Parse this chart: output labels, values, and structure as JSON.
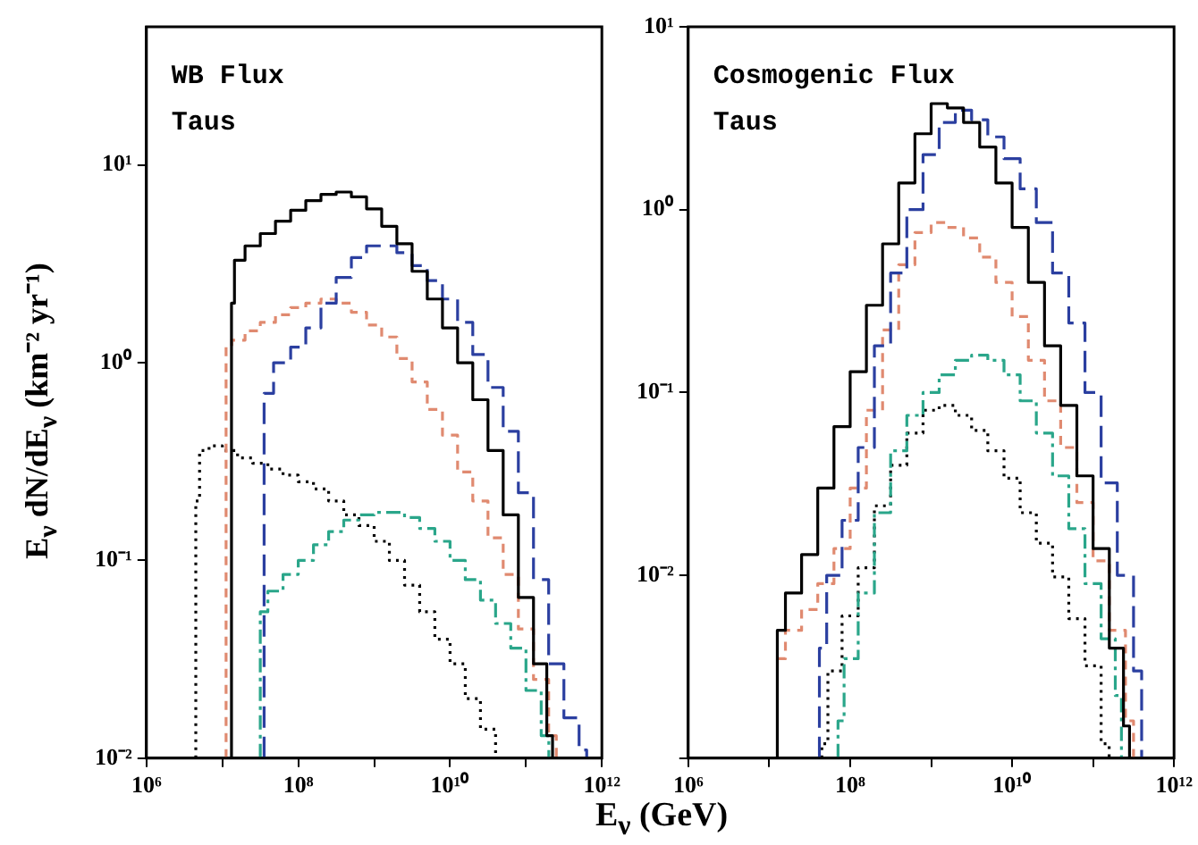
{
  "chart_data": [
    {
      "type": "step",
      "ylabel": "E$_{ν}$ dN/dE$_{ν}$ (km⁻² yr⁻¹)",
      "annotations": [
        "WB Flux",
        "Taus"
      ],
      "log": "xy",
      "legend": false,
      "xlim": [
        1000000.0,
        1000000000000.0
      ],
      "xticks": [
        {
          "value": 1000000.0,
          "label": "10⁶"
        },
        {
          "value": 10000000.0,
          "label": null
        },
        {
          "value": 100000000.0,
          "label": "10⁸"
        },
        {
          "value": 1000000000.0,
          "label": null
        },
        {
          "value": 10000000000.0,
          "label": "10¹⁰"
        },
        {
          "value": 100000000000.0,
          "label": null
        },
        {
          "value": 1000000000000.0,
          "label": "10¹²"
        }
      ],
      "ylim": [
        0.01,
        50
      ],
      "yticks": [
        {
          "value": 0.01,
          "label": "10⁻²"
        },
        {
          "value": 0.1,
          "label": "10⁻¹"
        },
        {
          "value": 1,
          "label": "10⁰"
        },
        {
          "value": 10,
          "label": "10¹"
        }
      ],
      "series": [
        {
          "color": "#000000",
          "line_style": "solid",
          "x": [
            13200000.0,
            13200000.0,
            15800000.0,
            25100000.0,
            39800000.0,
            63100000.0,
            100000000.0,
            158000000.0,
            251000000.0,
            398000000.0,
            631000000.0,
            1000000000.0,
            1580000000.0,
            2510000000.0,
            3980000000.0,
            6310000000.0,
            10000000000.0,
            15800000000.0,
            25100000000.0,
            39800000000.0,
            63100000000.0,
            100000000000.0,
            158000000000.0,
            224000000000.0,
            224000000000.0
          ],
          "values": [
            0.01,
            2.0,
            3.3,
            3.9,
            4.5,
            5.2,
            5.9,
            6.6,
            7.1,
            7.3,
            6.9,
            6.0,
            4.9,
            4.0,
            2.9,
            2.1,
            1.5,
            1.0,
            0.65,
            0.36,
            0.17,
            0.065,
            0.03,
            0.013,
            0.01
          ]
        },
        {
          "color": "#2b3fa0",
          "line_style": "longdashed",
          "x": [
            35500000.0,
            35500000.0,
            63100000.0,
            100000000.0,
            158000000.0,
            251000000.0,
            398000000.0,
            631000000.0,
            1000000000.0,
            1580000000.0,
            2510000000.0,
            3980000000.0,
            6310000000.0,
            10000000000.0,
            15800000000.0,
            25100000000.0,
            39800000000.0,
            63100000000.0,
            100000000000.0,
            158000000000.0,
            251000000000.0,
            398000000000.0,
            631000000000.0,
            631000000000.0
          ],
          "values": [
            0.01,
            0.7,
            1.0,
            1.2,
            1.5,
            2.0,
            2.7,
            3.4,
            3.9,
            3.9,
            3.6,
            3.1,
            2.6,
            2.1,
            1.6,
            1.1,
            0.75,
            0.45,
            0.22,
            0.08,
            0.03,
            0.016,
            0.011,
            0.01
          ]
        },
        {
          "color": "#e08a70",
          "line_style": "dashed",
          "x": [
            11200000.0,
            11200000.0,
            15800000.0,
            25100000.0,
            39800000.0,
            63100000.0,
            100000000.0,
            158000000.0,
            251000000.0,
            398000000.0,
            631000000.0,
            1000000000.0,
            1580000000.0,
            2510000000.0,
            3980000000.0,
            6310000000.0,
            10000000000.0,
            15800000000.0,
            25100000000.0,
            39800000000.0,
            63100000000.0,
            100000000000.0,
            158000000000.0,
            251000000000.0,
            251000000000.0
          ],
          "values": [
            0.01,
            1.2,
            1.3,
            1.45,
            1.6,
            1.75,
            1.9,
            2.0,
            2.1,
            2.0,
            1.8,
            1.55,
            1.35,
            1.05,
            0.8,
            0.58,
            0.43,
            0.28,
            0.2,
            0.13,
            0.085,
            0.045,
            0.025,
            0.013,
            0.01
          ]
        },
        {
          "color": "#2aa68a",
          "line_style": "dashdot",
          "x": [
            31600000.0,
            31600000.0,
            50100000.0,
            79400000.0,
            126000000.0,
            200000000.0,
            316000000.0,
            501000000.0,
            794000000.0,
            1260000000.0,
            2000000000.0,
            3160000000.0,
            5010000000.0,
            7940000000.0,
            12600000000.0,
            20000000000.0,
            31600000000.0,
            50100000000.0,
            79400000000.0,
            126000000000.0,
            200000000000.0,
            200000000000.0
          ],
          "values": [
            0.01,
            0.055,
            0.07,
            0.085,
            0.1,
            0.12,
            0.14,
            0.16,
            0.17,
            0.175,
            0.175,
            0.165,
            0.145,
            0.125,
            0.1,
            0.08,
            0.063,
            0.048,
            0.036,
            0.022,
            0.013,
            0.01
          ]
        },
        {
          "color": "#000000",
          "line_style": "dotted",
          "x": [
            4470000.0,
            4470000.0,
            5620000.0,
            7940000.0,
            12600000.0,
            20000000.0,
            31600000.0,
            50100000.0,
            79400000.0,
            126000000.0,
            200000000.0,
            316000000.0,
            501000000.0,
            794000000.0,
            1260000000.0,
            2000000000.0,
            3160000000.0,
            5010000000.0,
            7940000000.0,
            12600000000.0,
            20000000000.0,
            31600000000.0,
            50100000000.0
          ],
          "values": [
            0.01,
            0.2,
            0.36,
            0.38,
            0.36,
            0.33,
            0.31,
            0.29,
            0.27,
            0.25,
            0.23,
            0.2,
            0.17,
            0.15,
            0.125,
            0.1,
            0.075,
            0.055,
            0.04,
            0.03,
            0.02,
            0.014,
            0.01
          ]
        }
      ]
    },
    {
      "type": "step",
      "xlabel": "E$_{ν}$ (GeV)",
      "annotations": [
        "Cosmogenic Flux",
        "Taus"
      ],
      "log": "xy",
      "legend": false,
      "xlim": [
        1000000.0,
        1000000000000.0
      ],
      "xticks": [
        {
          "value": 1000000.0,
          "label": "10⁶"
        },
        {
          "value": 10000000.0,
          "label": null
        },
        {
          "value": 100000000.0,
          "label": "10⁸"
        },
        {
          "value": 1000000000.0,
          "label": null
        },
        {
          "value": 10000000000.0,
          "label": "10¹⁰"
        },
        {
          "value": 100000000000.0,
          "label": null
        },
        {
          "value": 1000000000000.0,
          "label": "10¹²"
        }
      ],
      "ylim": [
        0.001,
        10
      ],
      "yticks": [
        {
          "value": 0.001,
          "label": null
        },
        {
          "value": 0.01,
          "label": "10⁻²"
        },
        {
          "value": 0.1,
          "label": "10⁻¹"
        },
        {
          "value": 1,
          "label": "10⁰"
        },
        {
          "value": 10,
          "label": "10¹"
        }
      ],
      "series": [
        {
          "color": "#000000",
          "line_style": "solid",
          "x": [
            12600000.0,
            12600000.0,
            20000000.0,
            31600000.0,
            50100000.0,
            79400000.0,
            126000000.0,
            200000000.0,
            316000000.0,
            501000000.0,
            794000000.0,
            1260000000.0,
            2000000000.0,
            3160000000.0,
            5010000000.0,
            7940000000.0,
            12600000000.0,
            20000000000.0,
            31600000000.0,
            50100000000.0,
            79400000000.0,
            126000000000.0,
            200000000000.0,
            282000000000.0,
            282000000000.0
          ],
          "values": [
            0.001,
            0.005,
            0.008,
            0.013,
            0.03,
            0.065,
            0.13,
            0.3,
            0.65,
            1.4,
            2.6,
            3.8,
            3.6,
            3.0,
            2.2,
            1.4,
            0.8,
            0.4,
            0.18,
            0.085,
            0.035,
            0.014,
            0.004,
            0.0015,
            0.001
          ]
        },
        {
          "color": "#2b3fa0",
          "line_style": "longdashed",
          "x": [
            41700000.0,
            41700000.0,
            63100000.0,
            100000000.0,
            158000000.0,
            251000000.0,
            398000000.0,
            631000000.0,
            1000000000.0,
            1580000000.0,
            2510000000.0,
            3980000000.0,
            6310000000.0,
            10000000000.0,
            15800000000.0,
            25100000000.0,
            39800000000.0,
            63100000000.0,
            100000000000.0,
            158000000000.0,
            251000000000.0,
            398000000000.0,
            398000000000.0
          ],
          "values": [
            0.001,
            0.004,
            0.01,
            0.02,
            0.05,
            0.18,
            0.45,
            1.0,
            2.0,
            3.0,
            3.5,
            3.1,
            2.5,
            1.9,
            1.3,
            0.85,
            0.45,
            0.24,
            0.1,
            0.032,
            0.01,
            0.003,
            0.001
          ]
        },
        {
          "color": "#e08a70",
          "line_style": "dashed",
          "x": [
            12600000.0,
            20000000.0,
            31600000.0,
            50100000.0,
            79400000.0,
            126000000.0,
            200000000.0,
            316000000.0,
            501000000.0,
            794000000.0,
            1260000000.0,
            2000000000.0,
            3160000000.0,
            5010000000.0,
            7940000000.0,
            12600000000.0,
            20000000000.0,
            31600000000.0,
            50100000000.0,
            79400000000.0,
            126000000000.0,
            200000000000.0,
            316000000000.0,
            316000000000.0
          ],
          "values": [
            0.0035,
            0.005,
            0.0065,
            0.009,
            0.014,
            0.03,
            0.08,
            0.22,
            0.5,
            0.75,
            0.85,
            0.8,
            0.7,
            0.55,
            0.4,
            0.26,
            0.15,
            0.09,
            0.05,
            0.025,
            0.012,
            0.005,
            0.0016,
            0.001
          ]
        },
        {
          "color": "#2aa68a",
          "line_style": "dashdot",
          "x": [
            70800000.0,
            70800000.0,
            100000000.0,
            158000000.0,
            251000000.0,
            398000000.0,
            631000000.0,
            1000000000.0,
            1580000000.0,
            2510000000.0,
            3980000000.0,
            6310000000.0,
            10000000000.0,
            15800000000.0,
            25100000000.0,
            39800000000.0,
            63100000000.0,
            100000000000.0,
            158000000000.0,
            224000000000.0,
            224000000000.0
          ],
          "values": [
            0.001,
            0.0016,
            0.0035,
            0.008,
            0.022,
            0.048,
            0.075,
            0.1,
            0.125,
            0.15,
            0.16,
            0.15,
            0.125,
            0.09,
            0.06,
            0.035,
            0.018,
            0.009,
            0.0045,
            0.0022,
            0.001
          ]
        },
        {
          "color": "#000000",
          "line_style": "dotted",
          "x": [
            44700000.0,
            44700000.0,
            63100000.0,
            100000000.0,
            158000000.0,
            251000000.0,
            398000000.0,
            631000000.0,
            1000000000.0,
            1580000000.0,
            2510000000.0,
            3980000000.0,
            6310000000.0,
            10000000000.0,
            15800000000.0,
            25100000000.0,
            39800000000.0,
            63100000000.0,
            100000000000.0,
            158000000000.0,
            158000000000.0
          ],
          "values": [
            0.001,
            0.0012,
            0.003,
            0.006,
            0.011,
            0.024,
            0.04,
            0.06,
            0.08,
            0.085,
            0.075,
            0.062,
            0.048,
            0.034,
            0.022,
            0.015,
            0.0098,
            0.0058,
            0.0032,
            0.0012,
            0.001
          ]
        }
      ]
    }
  ]
}
